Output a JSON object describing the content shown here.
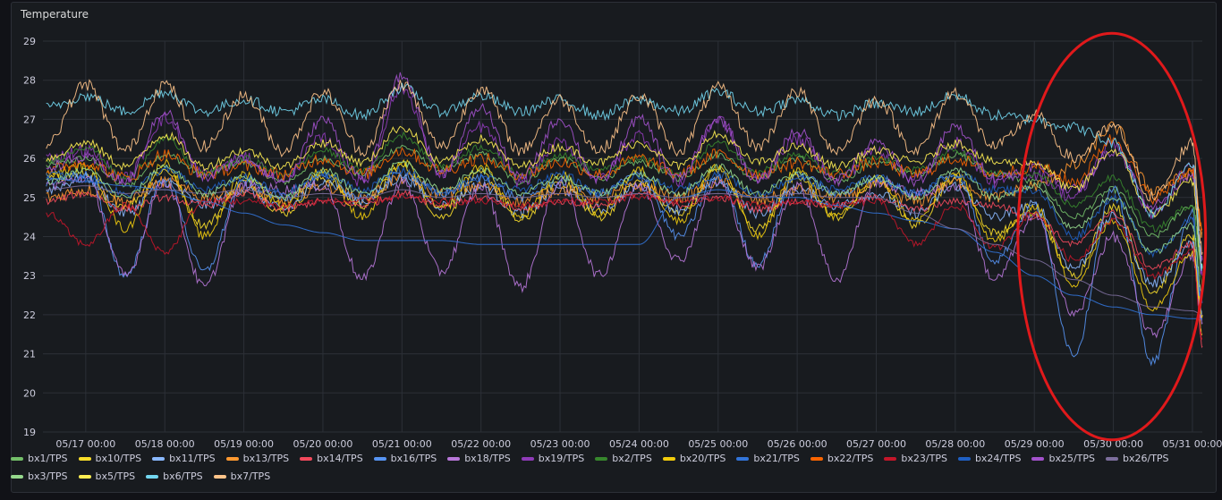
{
  "panel": {
    "title": "Temperature"
  },
  "chart_data": {
    "type": "line",
    "title": "Temperature",
    "xlabel": "",
    "ylabel": "",
    "ylim": [
      19,
      29
    ],
    "xlim": [
      "05/16 11:00",
      "05/31 03:00"
    ],
    "grid": true,
    "legend_position": "bottom",
    "y_ticks": [
      "19",
      "20",
      "21",
      "22",
      "23",
      "24",
      "25",
      "26",
      "27",
      "28",
      "29"
    ],
    "x_ticks": [
      "05/17 00:00",
      "05/18 00:00",
      "05/19 00:00",
      "05/20 00:00",
      "05/21 00:00",
      "05/22 00:00",
      "05/23 00:00",
      "05/24 00:00",
      "05/25 00:00",
      "05/26 00:00",
      "05/27 00:00",
      "05/28 00:00",
      "05/29 00:00",
      "05/30 00:00",
      "05/31 00:00"
    ],
    "annotation": {
      "type": "ellipse",
      "color": "#e0191b",
      "from": "05/28 19:00",
      "to": "05/31 04:00",
      "y_from": 18.8,
      "y_to": 29.2
    },
    "x": [
      "05/16 12:00",
      "05/17 00:00",
      "05/17 12:00",
      "05/18 00:00",
      "05/18 12:00",
      "05/19 00:00",
      "05/19 12:00",
      "05/20 00:00",
      "05/20 12:00",
      "05/21 00:00",
      "05/21 12:00",
      "05/22 00:00",
      "05/22 12:00",
      "05/23 00:00",
      "05/23 12:00",
      "05/24 00:00",
      "05/24 12:00",
      "05/25 00:00",
      "05/25 12:00",
      "05/26 00:00",
      "05/26 12:00",
      "05/27 00:00",
      "05/27 12:00",
      "05/28 00:00",
      "05/28 12:00",
      "05/29 00:00",
      "05/29 12:00",
      "05/30 00:00",
      "05/30 12:00",
      "05/31 00:00",
      "05/31 03:00"
    ],
    "series": [
      {
        "name": "bx1/TPS",
        "color": "#73bf69",
        "values": [
          25.8,
          26.0,
          25.3,
          26.1,
          25.6,
          25.9,
          25.4,
          26.0,
          25.6,
          26.3,
          25.7,
          26.1,
          25.4,
          26.0,
          25.5,
          25.9,
          25.5,
          26.1,
          25.5,
          26.0,
          25.4,
          25.9,
          25.6,
          26.1,
          25.6,
          25.4,
          24.5,
          25.2,
          24.0,
          24.8,
          23.2
        ]
      },
      {
        "name": "bx10/TPS",
        "color": "#fade2a",
        "values": [
          25.5,
          25.6,
          24.8,
          25.7,
          24.3,
          25.4,
          24.6,
          25.5,
          24.8,
          25.8,
          24.5,
          25.6,
          24.4,
          25.4,
          24.5,
          25.4,
          24.6,
          25.7,
          24.2,
          25.5,
          24.5,
          25.4,
          24.3,
          25.5,
          24.1,
          24.6,
          23.0,
          24.8,
          22.6,
          24.0,
          21.5
        ]
      },
      {
        "name": "bx11/TPS",
        "color": "#8ab8ff",
        "values": [
          25.2,
          25.5,
          24.6,
          25.4,
          24.8,
          25.2,
          24.7,
          25.4,
          24.9,
          25.5,
          24.8,
          25.3,
          24.6,
          25.2,
          24.7,
          25.3,
          24.7,
          25.4,
          24.6,
          25.2,
          24.8,
          25.1,
          24.6,
          25.3,
          24.5,
          24.8,
          23.2,
          24.5,
          22.8,
          23.8,
          22.0
        ]
      },
      {
        "name": "bx13/TPS",
        "color": "#ff9830",
        "values": [
          25.0,
          25.2,
          24.9,
          25.4,
          25.0,
          25.2,
          24.9,
          25.3,
          25.0,
          25.5,
          25.1,
          25.3,
          24.9,
          25.2,
          25.0,
          25.3,
          25.0,
          25.4,
          24.9,
          25.2,
          25.0,
          25.3,
          24.9,
          25.4,
          25.0,
          25.3,
          25.8,
          26.8,
          25.2,
          25.6,
          24.1
        ]
      },
      {
        "name": "bx14/TPS",
        "color": "#f2495c",
        "values": [
          24.9,
          25.1,
          24.7,
          25.0,
          24.8,
          25.1,
          24.7,
          24.9,
          24.8,
          25.1,
          24.8,
          25.0,
          24.7,
          24.9,
          24.8,
          25.1,
          24.8,
          25.0,
          24.7,
          24.9,
          24.8,
          25.0,
          24.7,
          24.9,
          24.8,
          24.5,
          23.8,
          24.6,
          23.2,
          23.8,
          21.2
        ]
      },
      {
        "name": "bx16/TPS",
        "color": "#5794f2",
        "values": [
          25.4,
          25.6,
          23.0,
          25.5,
          23.1,
          25.4,
          25.0,
          25.5,
          25.0,
          25.6,
          25.1,
          25.5,
          25.0,
          25.4,
          25.1,
          25.6,
          24.0,
          25.5,
          23.3,
          25.6,
          25.1,
          25.5,
          25.1,
          25.6,
          23.4,
          24.8,
          21.0,
          25.2,
          20.8,
          24.6,
          21.9
        ]
      },
      {
        "name": "bx18/TPS",
        "color": "#b877d9",
        "values": [
          25.3,
          25.5,
          23.0,
          25.4,
          22.7,
          25.3,
          25.2,
          25.3,
          22.9,
          25.4,
          23.1,
          25.3,
          22.7,
          25.4,
          23.0,
          25.3,
          23.4,
          25.4,
          23.2,
          25.3,
          22.9,
          25.4,
          25.1,
          25.3,
          22.9,
          24.5,
          22.0,
          24.0,
          21.5,
          23.5,
          21.8
        ]
      },
      {
        "name": "bx19/TPS",
        "color": "#8f3bb8",
        "values": [
          26.0,
          26.2,
          25.5,
          27.0,
          25.6,
          26.0,
          25.5,
          26.5,
          25.4,
          27.8,
          25.6,
          26.8,
          25.4,
          26.4,
          25.5,
          26.6,
          25.4,
          27.0,
          25.5,
          26.5,
          25.4,
          26.2,
          25.5,
          26.4,
          25.4,
          25.6,
          25.0,
          26.4,
          24.6,
          25.8,
          23.0
        ]
      },
      {
        "name": "bx2/TPS",
        "color": "#37872d",
        "values": [
          25.9,
          26.3,
          25.5,
          26.5,
          25.6,
          26.0,
          25.6,
          26.2,
          25.7,
          26.6,
          25.8,
          26.3,
          25.6,
          26.1,
          25.7,
          26.0,
          25.6,
          26.4,
          25.7,
          26.1,
          25.6,
          26.0,
          25.7,
          26.2,
          25.6,
          25.6,
          24.8,
          25.5,
          24.2,
          24.8,
          22.8
        ]
      },
      {
        "name": "bx20/TPS",
        "color": "#f2cc0c",
        "values": [
          25.6,
          25.8,
          24.2,
          25.9,
          24.0,
          25.6,
          24.8,
          25.7,
          24.5,
          25.9,
          24.7,
          25.8,
          24.5,
          25.6,
          24.6,
          25.7,
          24.4,
          25.8,
          24.0,
          25.7,
          24.5,
          25.5,
          24.4,
          25.6,
          23.9,
          24.8,
          22.8,
          24.4,
          22.2,
          23.6,
          22.0
        ]
      },
      {
        "name": "bx21/TPS",
        "color": "#3274d9",
        "values": [
          25.5,
          25.4,
          25.3,
          25.2,
          24.9,
          24.6,
          24.3,
          24.1,
          23.9,
          23.9,
          23.9,
          23.8,
          23.8,
          23.8,
          23.8,
          23.8,
          25.0,
          25.2,
          25.0,
          25.0,
          24.8,
          24.6,
          24.4,
          24.2,
          23.6,
          23.0,
          22.5,
          22.2,
          22.0,
          21.9,
          21.9
        ]
      },
      {
        "name": "bx22/TPS",
        "color": "#fa6400",
        "values": [
          25.7,
          25.9,
          25.5,
          26.1,
          25.6,
          25.8,
          25.6,
          26.0,
          25.6,
          26.2,
          25.7,
          26.0,
          25.6,
          25.9,
          25.6,
          26.0,
          25.6,
          26.1,
          25.6,
          25.9,
          25.6,
          25.9,
          25.6,
          26.0,
          25.6,
          25.8,
          25.4,
          26.5,
          25.0,
          25.7,
          24.2
        ]
      },
      {
        "name": "bx23/TPS",
        "color": "#c4162a",
        "values": [
          24.6,
          23.8,
          24.8,
          23.6,
          24.9,
          24.9,
          24.8,
          24.9,
          24.9,
          25.0,
          24.9,
          24.9,
          24.8,
          24.9,
          24.9,
          25.0,
          24.9,
          25.0,
          24.8,
          24.9,
          24.8,
          24.9,
          23.8,
          24.8,
          23.7,
          24.6,
          23.4,
          24.4,
          23.0,
          23.6,
          21.4
        ]
      },
      {
        "name": "bx24/TPS",
        "color": "#1f60c4",
        "values": [
          25.6,
          25.5,
          25.1,
          25.7,
          25.2,
          25.5,
          25.1,
          25.6,
          25.2,
          25.7,
          25.1,
          25.5,
          25.2,
          25.6,
          25.1,
          25.5,
          25.2,
          25.6,
          25.1,
          25.5,
          25.2,
          25.5,
          25.1,
          25.6,
          25.2,
          25.2,
          24.0,
          25.0,
          23.6,
          24.4,
          22.3
        ]
      },
      {
        "name": "bx25/TPS",
        "color": "#a352cc",
        "values": [
          25.8,
          26.0,
          25.4,
          27.2,
          25.5,
          26.0,
          25.4,
          27.0,
          25.5,
          28.1,
          25.6,
          27.3,
          25.5,
          27.0,
          25.4,
          27.0,
          25.5,
          27.0,
          25.4,
          26.7,
          25.5,
          26.4,
          25.4,
          26.8,
          25.5,
          25.8,
          25.2,
          26.2,
          24.8,
          25.6,
          23.4
        ]
      },
      {
        "name": "bx26/TPS",
        "color": "#7c6e9c",
        "values": [
          25.2,
          25.3,
          25.1,
          25.2,
          25.1,
          25.2,
          25.0,
          25.1,
          25.0,
          25.2,
          25.0,
          25.1,
          25.0,
          25.1,
          25.0,
          25.1,
          25.0,
          25.1,
          25.0,
          25.1,
          25.0,
          25.0,
          24.6,
          24.2,
          23.8,
          23.4,
          22.9,
          22.5,
          22.2,
          22.1,
          22.0
        ]
      },
      {
        "name": "bx3/TPS",
        "color": "#96d98d",
        "values": [
          25.4,
          25.7,
          25.0,
          25.8,
          25.1,
          25.5,
          25.0,
          25.7,
          25.1,
          25.9,
          25.2,
          25.7,
          25.1,
          25.5,
          25.1,
          25.6,
          25.1,
          25.8,
          25.1,
          25.6,
          25.1,
          25.5,
          25.0,
          25.7,
          25.0,
          25.3,
          24.2,
          25.0,
          23.6,
          24.3,
          22.5
        ]
      },
      {
        "name": "bx5/TPS",
        "color": "#ffee52",
        "values": [
          26.0,
          26.4,
          25.8,
          26.6,
          25.8,
          26.2,
          25.8,
          26.4,
          25.9,
          26.8,
          25.9,
          26.5,
          25.8,
          26.3,
          25.9,
          26.4,
          25.8,
          26.6,
          25.9,
          26.3,
          25.8,
          26.2,
          25.9,
          26.4,
          25.9,
          25.9,
          25.2,
          26.2,
          24.6,
          25.4,
          23.2
        ]
      },
      {
        "name": "bx6/TPS",
        "color": "#73d7f0",
        "values": [
          27.3,
          27.6,
          27.2,
          27.7,
          27.2,
          27.5,
          27.2,
          27.5,
          27.1,
          27.8,
          27.2,
          27.6,
          27.2,
          27.5,
          27.1,
          27.5,
          27.2,
          27.7,
          27.2,
          27.5,
          27.1,
          27.4,
          27.2,
          27.6,
          27.1,
          27.0,
          26.8,
          26.4,
          24.6,
          25.9,
          23.2
        ]
      },
      {
        "name": "bx7/TPS",
        "color": "#ffc48a",
        "values": [
          26.4,
          27.9,
          26.2,
          27.9,
          26.3,
          27.6,
          26.2,
          27.7,
          26.2,
          27.9,
          26.3,
          27.8,
          26.2,
          27.5,
          26.2,
          27.6,
          26.2,
          27.8,
          26.3,
          27.7,
          26.2,
          27.5,
          26.2,
          27.7,
          26.3,
          27.1,
          26.0,
          26.8,
          25.0,
          26.4,
          23.6
        ]
      }
    ]
  }
}
